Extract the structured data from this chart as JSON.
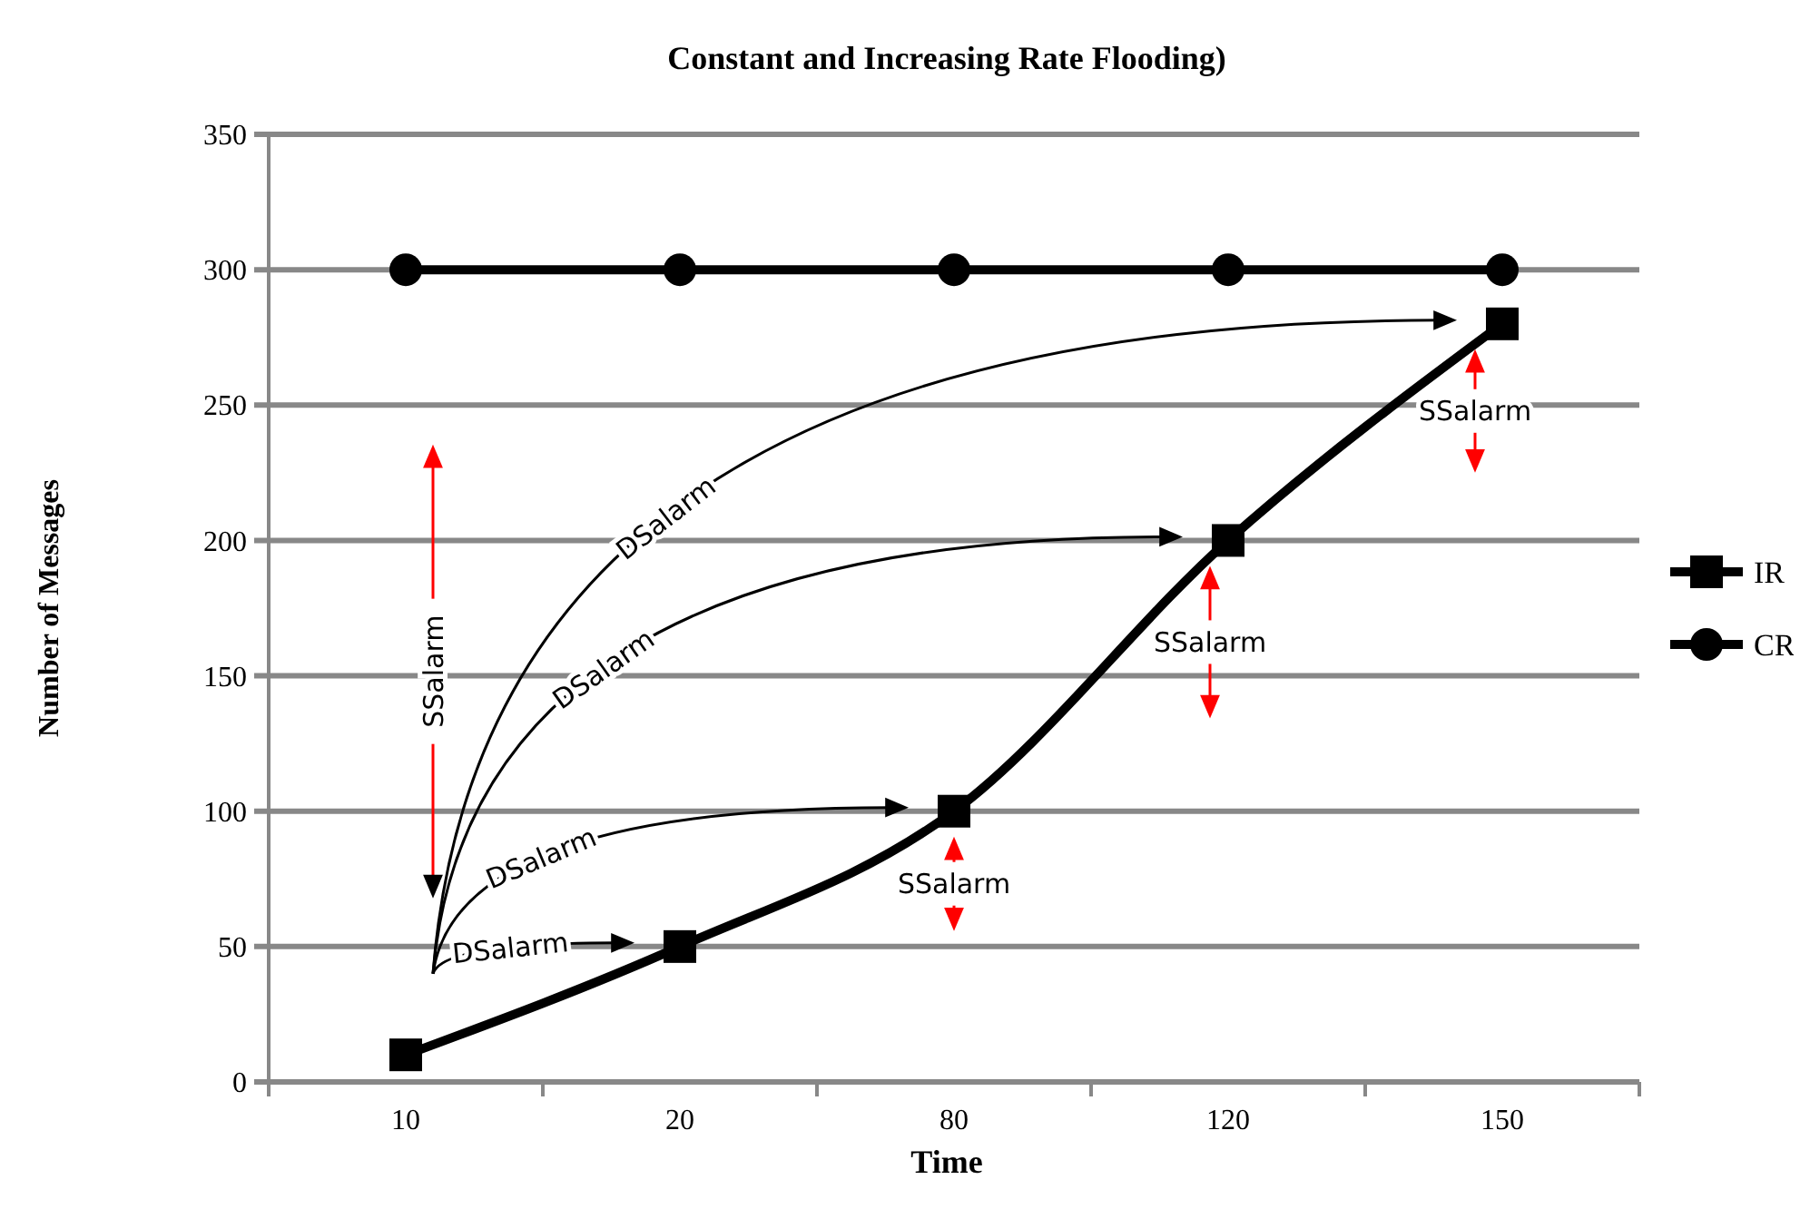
{
  "chart_data": {
    "type": "line",
    "title": "Constant and Increasing Rate Flooding)",
    "xlabel": "Time",
    "ylabel": "Number of Messages",
    "categories": [
      "10",
      "20",
      "80",
      "120",
      "150"
    ],
    "series": [
      {
        "name": "IR",
        "color": "#000000",
        "marker": "square",
        "values": [
          10,
          50,
          100,
          200,
          280
        ]
      },
      {
        "name": "CR",
        "color": "#000000",
        "marker": "circle",
        "values": [
          300,
          300,
          300,
          300,
          300
        ]
      }
    ],
    "ylim": [
      0,
      350
    ],
    "yticks": [
      0,
      50,
      100,
      150,
      200,
      250,
      300,
      350
    ],
    "grid": "y",
    "legend": "right",
    "line_style": "solid",
    "annotations": [
      "DSalarm",
      "DSalarm",
      "DSalarm",
      "DSalarm",
      "SSalarm",
      "SSalarm",
      "SSalarm",
      "SSalarm"
    ]
  }
}
